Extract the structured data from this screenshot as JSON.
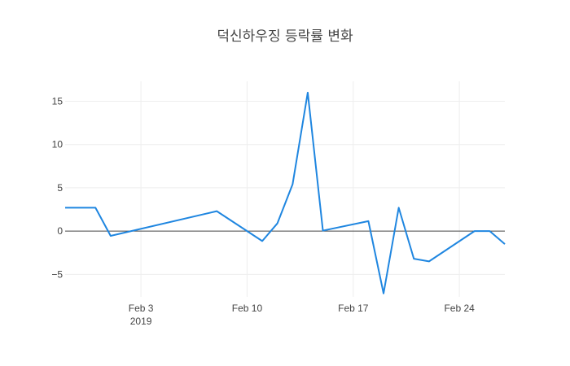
{
  "chart_data": {
    "type": "line",
    "title": "덕신하우징 등락률 변화",
    "xlabel": "",
    "ylabel": "",
    "x_tick_labels": [
      {
        "date": "2019-02-03",
        "label": "Feb 3",
        "sublabel": "2019"
      },
      {
        "date": "2019-02-10",
        "label": "Feb 10",
        "sublabel": ""
      },
      {
        "date": "2019-02-17",
        "label": "Feb 17",
        "sublabel": ""
      },
      {
        "date": "2019-02-24",
        "label": "Feb 24",
        "sublabel": ""
      }
    ],
    "y_ticks": [
      -5,
      0,
      5,
      10,
      15
    ],
    "y_tick_labels": [
      "−5",
      "0",
      "5",
      "10",
      "15"
    ],
    "xlim": [
      "2019-01-29",
      "2019-02-27"
    ],
    "ylim": [
      -7.6,
      17.3
    ],
    "grid": true,
    "series": [
      {
        "color": "#1f86e0",
        "x": [
          "2019-01-29",
          "2019-01-30",
          "2019-01-31",
          "2019-02-01",
          "2019-02-08",
          "2019-02-11",
          "2019-02-12",
          "2019-02-13",
          "2019-02-14",
          "2019-02-15",
          "2019-02-18",
          "2019-02-19",
          "2019-02-20",
          "2019-02-21",
          "2019-02-22",
          "2019-02-25",
          "2019-02-26",
          "2019-02-27"
        ],
        "values": [
          2.7,
          2.7,
          2.7,
          -0.55,
          2.3,
          -1.15,
          0.9,
          5.4,
          16.0,
          0.05,
          1.15,
          -7.2,
          2.7,
          -3.2,
          -3.5,
          0.0,
          0.0,
          -1.5
        ]
      }
    ]
  }
}
